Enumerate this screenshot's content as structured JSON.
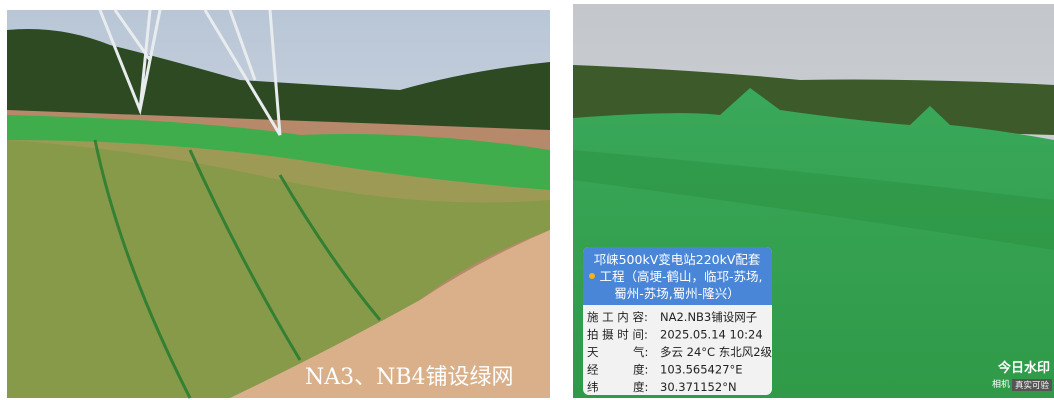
{
  "left_photo": {
    "caption": "NA3、NB4铺设绿网"
  },
  "right_photo": {
    "watermark": {
      "title_lines": [
        "邛崃500kV变电站220kV配套",
        "工程（高埂-鹤山，临邛-苏场,",
        "蜀州-苏场,蜀州-隆兴）"
      ],
      "rows": [
        {
          "label": "施 工 内 容:",
          "value": "NA2.NB3铺设网子"
        },
        {
          "label": "拍 摄 时 间:",
          "value": "2025.05.14 10:24"
        },
        {
          "label": "天　　　气:",
          "value": "多云 24°C 东北风2级"
        },
        {
          "label": "经　　　度:",
          "value": "103.565427°E"
        },
        {
          "label": "纬　　　度:",
          "value": "30.371152°N"
        }
      ]
    },
    "logo": {
      "name": "今日水印",
      "sub": "相机",
      "badge": "真实可验"
    }
  }
}
